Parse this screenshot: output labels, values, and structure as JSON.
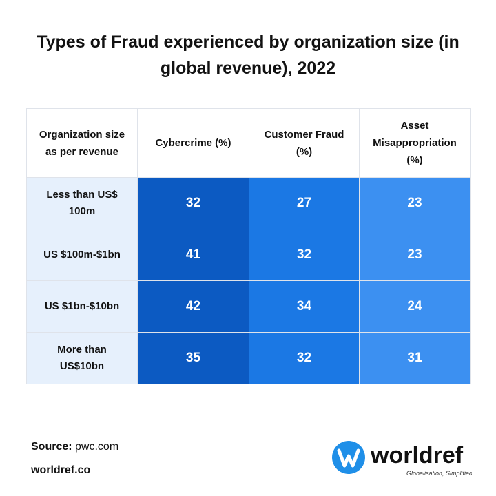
{
  "header": {
    "title": "Types of Fraud experienced by organization size (in global revenue), 2022"
  },
  "table": {
    "columns": [
      "Organization size as per revenue",
      "Cybercrime (%)",
      "Customer Fraud (%)",
      "Asset Misappropriation (%)"
    ],
    "rows": [
      [
        "Less than US$ 100m",
        32,
        27,
        23
      ],
      [
        "US $100m-$1bn",
        41,
        32,
        23
      ],
      [
        "US $1bn-$10bn",
        42,
        34,
        24
      ],
      [
        "More than US$10bn",
        35,
        32,
        31
      ]
    ]
  },
  "footer": {
    "source_label": "Source:",
    "source": "pwc.com",
    "website": "worldref.co",
    "logo": "worldref",
    "tagline": "Globalisation, Simplified."
  }
}
